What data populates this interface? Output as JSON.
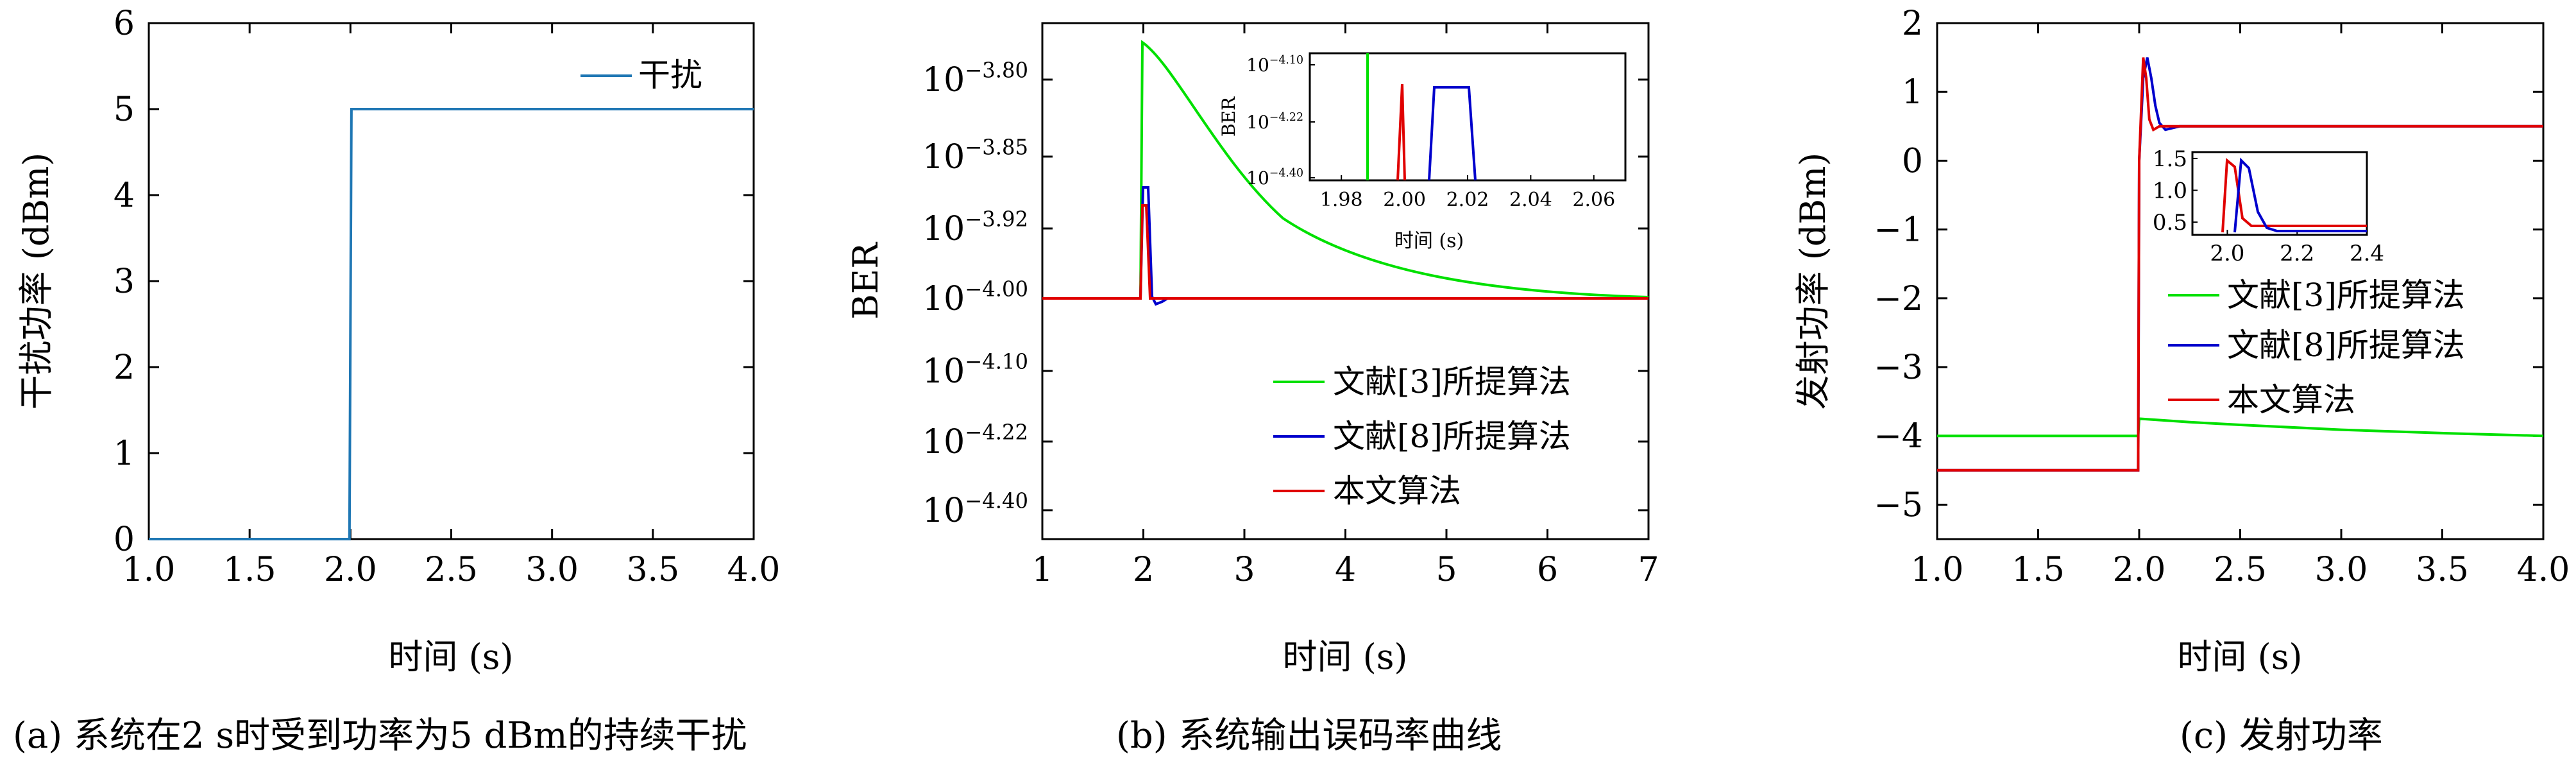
{
  "chart_data": [
    {
      "type": "line",
      "caption": "(a) 系统在2 s时受到功率为5 dBm的持续干扰",
      "xlabel": "时间 (s)",
      "ylabel": "干扰功率 (dBm)",
      "xlim": [
        1.0,
        4.0
      ],
      "ylim": [
        0,
        6
      ],
      "xticks": [
        "1.0",
        "1.5",
        "2.0",
        "2.5",
        "3.0",
        "3.5",
        "4.0"
      ],
      "yticks": [
        "0",
        "1",
        "2",
        "3",
        "4",
        "5",
        "6"
      ],
      "legend_position": "top-right",
      "series": [
        {
          "name": "干扰",
          "color": "#1f77b4",
          "x": [
            1.0,
            1.995,
            2.005,
            4.0
          ],
          "y": [
            0,
            0,
            5,
            5
          ]
        }
      ]
    },
    {
      "type": "line",
      "caption": "(b) 系统输出误码率曲线",
      "xlabel": "时间 (s)",
      "ylabel": "BER",
      "xlim": [
        1,
        7
      ],
      "yscale": "log",
      "ytick_exponents": [
        "-3.80",
        "-3.85",
        "-3.92",
        "-4.00",
        "-4.10",
        "-4.22",
        "-4.40"
      ],
      "xticks": [
        "1",
        "2",
        "3",
        "4",
        "5",
        "6",
        "7"
      ],
      "legend_position": "lower-right",
      "series": [
        {
          "name": "文献[3]所提算法",
          "color": "#00e000"
        },
        {
          "name": "文献[8]所提算法",
          "color": "#0000cc"
        },
        {
          "name": "本文算法",
          "color": "#e00000"
        }
      ],
      "inset": {
        "xlabel": "时间 (s)",
        "ylabel": "BER",
        "xlim": [
          1.97,
          2.07
        ],
        "xticks": [
          "1.98",
          "2.00",
          "2.02",
          "2.04",
          "2.06"
        ],
        "ytick_exponents": [
          "-4.10",
          "-4.22",
          "-4.40"
        ]
      }
    },
    {
      "type": "line",
      "caption": "(c) 发射功率",
      "xlabel": "时间 (s)",
      "ylabel": "发射功率 (dBm)",
      "xlim": [
        1.0,
        4.0
      ],
      "ylim": [
        -5.5,
        2
      ],
      "xticks": [
        "1.0",
        "1.5",
        "2.0",
        "2.5",
        "3.0",
        "3.5",
        "4.0"
      ],
      "yticks": [
        "2",
        "1",
        "0",
        "−1",
        "−2",
        "−3",
        "−4",
        "−5"
      ],
      "legend_position": "center-right",
      "series": [
        {
          "name": "文献[3]所提算法",
          "color": "#00e000",
          "x": [
            1.0,
            1.995,
            2.0,
            2.25,
            2.5,
            3.0,
            3.5,
            4.0
          ],
          "y": [
            -4.0,
            -4.0,
            -3.75,
            -3.8,
            -3.84,
            -3.91,
            -3.96,
            -4.0
          ]
        },
        {
          "name": "文献[8]所提算法",
          "color": "#0000cc",
          "x": [
            1.0,
            1.995,
            2.0,
            2.02,
            2.04,
            2.06,
            2.08,
            2.1,
            2.13,
            2.2,
            4.0
          ],
          "y": [
            -4.5,
            -4.5,
            0.0,
            1.2,
            1.5,
            1.2,
            0.8,
            0.55,
            0.45,
            0.5,
            0.5
          ]
        },
        {
          "name": "本文算法",
          "color": "#e00000",
          "x": [
            1.0,
            1.995,
            2.0,
            2.02,
            2.035,
            2.05,
            2.07,
            2.1,
            4.0
          ],
          "y": [
            -4.5,
            -4.5,
            0.0,
            1.5,
            1.2,
            0.6,
            0.45,
            0.5,
            0.5
          ]
        }
      ],
      "inset": {
        "xlim": [
          1.9,
          2.4
        ],
        "ylim": [
          0.3,
          1.6
        ],
        "xticks": [
          "2.0",
          "2.2",
          "2.4"
        ],
        "yticks": [
          "1.5",
          "1.0",
          "0.5"
        ]
      }
    }
  ]
}
